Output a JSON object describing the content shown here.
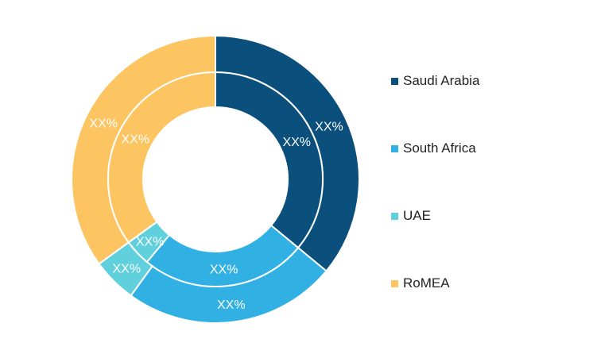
{
  "chart_data": {
    "type": "pie",
    "variant": "double-donut",
    "categories": [
      "Saudi Arabia",
      "South Africa",
      "UAE",
      "RoMEA"
    ],
    "colors": [
      "#0b4f7c",
      "#31b0e4",
      "#5fd0dc",
      "#fdc462"
    ],
    "series": [
      {
        "ring": "outer",
        "values": [
          36,
          24,
          5,
          35
        ],
        "labels": [
          "XX%",
          "XX%",
          "XX%",
          "XX%"
        ]
      },
      {
        "ring": "inner",
        "values": [
          36,
          25,
          4,
          35
        ],
        "labels": [
          "XX%",
          "XX%",
          "XX%",
          "XX%"
        ]
      }
    ],
    "legend_position": "right",
    "title": ""
  },
  "legend": {
    "items": [
      {
        "label": "Saudi Arabia",
        "color": "#0b4f7c"
      },
      {
        "label": "South Africa",
        "color": "#31b0e4"
      },
      {
        "label": "UAE",
        "color": "#5fd0dc"
      },
      {
        "label": "RoMEA",
        "color": "#fdc462"
      }
    ]
  }
}
